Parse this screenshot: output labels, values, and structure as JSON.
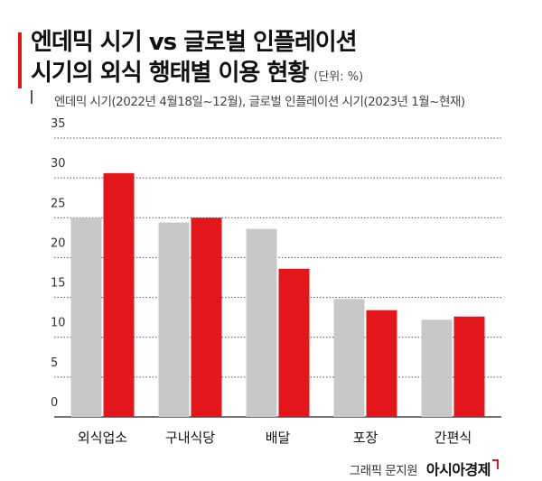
{
  "header": {
    "title_line1": "엔데믹 시기 vs 글로벌 인플레이션",
    "title_line2": "시기의 외식 행태별 이용 현황",
    "unit": "(단위: %)",
    "subtitle": "엔데믹 시기(2022년 4월18일~12월), 글로벌 인플레이션 시기(2023년 1월~현재)"
  },
  "colors": {
    "accent": "#e3161b",
    "gray": "#c8c8c8",
    "grid": "#555555"
  },
  "chart_data": {
    "type": "bar",
    "categories": [
      "외식업소",
      "구내식당",
      "배달",
      "포장",
      "간편식"
    ],
    "series": [
      {
        "name": "엔데믹 시기",
        "values": [
          25.0,
          24.4,
          23.6,
          14.8,
          12.2
        ],
        "color": "#c8c8c8"
      },
      {
        "name": "글로벌 인플레이션 시기",
        "values": [
          30.6,
          25.0,
          18.6,
          13.4,
          12.6
        ],
        "color": "#e3161b"
      }
    ],
    "yticks": [
      "35",
      "30",
      "25",
      "20",
      "15",
      "10",
      "5",
      "0"
    ],
    "ylim": [
      0,
      35
    ],
    "grid": true,
    "title": "엔데믹 시기 vs 글로벌 인플레이션 시기의 외식 행태별 이용 현황",
    "xlabel": "",
    "ylabel": ""
  },
  "footer": {
    "credit": "그래픽 문지원",
    "brand": "아시아경제"
  }
}
